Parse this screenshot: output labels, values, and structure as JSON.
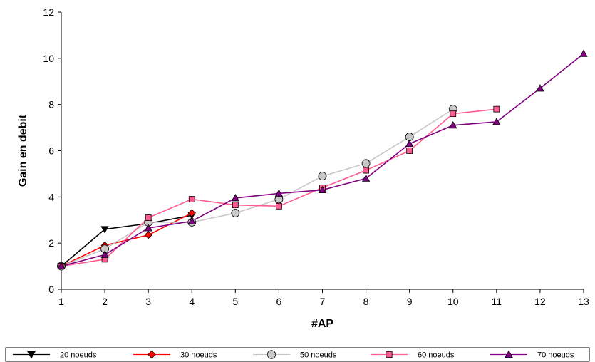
{
  "chart_data": {
    "type": "line",
    "xlabel": "#AP",
    "ylabel": "Gain en debit",
    "xlim": [
      1,
      13
    ],
    "ylim": [
      0,
      12
    ],
    "x_ticks": [
      1,
      2,
      3,
      4,
      5,
      6,
      7,
      8,
      9,
      10,
      11,
      12,
      13
    ],
    "y_ticks": [
      0,
      2,
      4,
      6,
      8,
      10,
      12
    ],
    "grid": false,
    "legend_placement": "bottom",
    "series": [
      {
        "name": "20 noeuds",
        "color": "#000000",
        "line_color": "#000000",
        "marker": "triangle-down",
        "x": [
          1,
          2,
          3,
          4
        ],
        "y": [
          1.0,
          2.6,
          2.85,
          3.2
        ]
      },
      {
        "name": "30 noeuds",
        "color": "#ff0000",
        "line_color": "#ff0000",
        "marker": "diamond",
        "x": [
          1,
          2,
          3,
          4
        ],
        "y": [
          1.0,
          1.9,
          2.35,
          3.3
        ]
      },
      {
        "name": "50 noeuds",
        "color": "#c8c8c8",
        "line_color": "#c8c8c8",
        "marker": "circle",
        "x": [
          1,
          2,
          3,
          4,
          5,
          6,
          7,
          8,
          9,
          10
        ],
        "y": [
          1.0,
          1.75,
          2.9,
          2.9,
          3.3,
          3.9,
          4.9,
          5.45,
          6.6,
          7.8
        ]
      },
      {
        "name": "60 noeuds",
        "color": "#ff5b90",
        "line_color": "#ff5b90",
        "marker": "square",
        "x": [
          1,
          2,
          3,
          4,
          5,
          6,
          7,
          8,
          9,
          10,
          11
        ],
        "y": [
          1.0,
          1.3,
          3.1,
          3.9,
          3.65,
          3.6,
          4.4,
          5.15,
          6.0,
          7.6,
          7.8
        ]
      },
      {
        "name": "70 noeuds",
        "color": "#800080",
        "line_color": "#800080",
        "marker": "triangle-up",
        "x": [
          1,
          2,
          3,
          4,
          5,
          6,
          7,
          8,
          9,
          10,
          11,
          12,
          13
        ],
        "y": [
          1.0,
          1.5,
          2.65,
          2.95,
          3.95,
          4.15,
          4.3,
          4.8,
          6.3,
          7.1,
          7.25,
          8.7,
          10.2
        ]
      }
    ]
  }
}
